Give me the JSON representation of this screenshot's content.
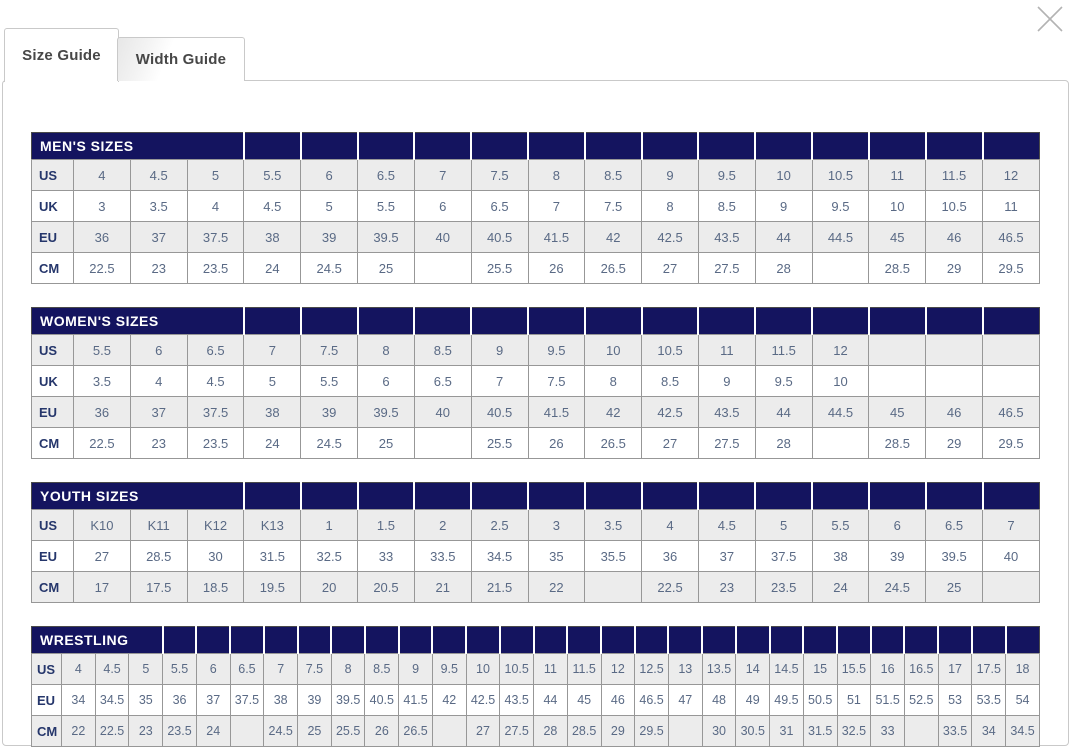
{
  "colors": {
    "header_navy": "#14145f",
    "row_alt_bg": "#ececec",
    "row_bg": "#ffffff",
    "value_text": "#5a6a85",
    "label_text": "#25366b",
    "header_text": "#ffffff",
    "grid_line": "#979797",
    "table_outer": "#4a4a4a",
    "tab_text": "#474747",
    "tab_border": "#c9c9c9",
    "close_color": "#b3b3b3"
  },
  "icons": {
    "close": "x-cross"
  },
  "tabs": [
    {
      "label": "Size Guide",
      "active": true
    },
    {
      "label": "Width Guide",
      "active": false
    }
  ],
  "tables": [
    {
      "title": "MEN'S SIZES",
      "rows": [
        {
          "label": "US",
          "values": [
            "4",
            "4.5",
            "5",
            "5.5",
            "6",
            "6.5",
            "7",
            "7.5",
            "8",
            "8.5",
            "9",
            "9.5",
            "10",
            "10.5",
            "11",
            "11.5",
            "12"
          ]
        },
        {
          "label": "UK",
          "values": [
            "3",
            "3.5",
            "4",
            "4.5",
            "5",
            "5.5",
            "6",
            "6.5",
            "7",
            "7.5",
            "8",
            "8.5",
            "9",
            "9.5",
            "10",
            "10.5",
            "11"
          ]
        },
        {
          "label": "EU",
          "values": [
            "36",
            "37",
            "37.5",
            "38",
            "39",
            "39.5",
            "40",
            "40.5",
            "41.5",
            "42",
            "42.5",
            "43.5",
            "44",
            "44.5",
            "45",
            "46",
            "46.5"
          ]
        },
        {
          "label": "CM",
          "values": [
            "22.5",
            "23",
            "23.5",
            "24",
            "24.5",
            "25",
            "",
            "25.5",
            "26",
            "26.5",
            "27",
            "27.5",
            "28",
            "",
            "28.5",
            "29",
            "29.5"
          ]
        }
      ]
    },
    {
      "title": "WOMEN'S SIZES",
      "rows": [
        {
          "label": "US",
          "values": [
            "5.5",
            "6",
            "6.5",
            "7",
            "7.5",
            "8",
            "8.5",
            "9",
            "9.5",
            "10",
            "10.5",
            "11",
            "11.5",
            "12",
            "",
            "",
            ""
          ]
        },
        {
          "label": "UK",
          "values": [
            "3.5",
            "4",
            "4.5",
            "5",
            "5.5",
            "6",
            "6.5",
            "7",
            "7.5",
            "8",
            "8.5",
            "9",
            "9.5",
            "10",
            "",
            "",
            ""
          ]
        },
        {
          "label": "EU",
          "values": [
            "36",
            "37",
            "37.5",
            "38",
            "39",
            "39.5",
            "40",
            "40.5",
            "41.5",
            "42",
            "42.5",
            "43.5",
            "44",
            "44.5",
            "45",
            "46",
            "46.5"
          ]
        },
        {
          "label": "CM",
          "values": [
            "22.5",
            "23",
            "23.5",
            "24",
            "24.5",
            "25",
            "",
            "25.5",
            "26",
            "26.5",
            "27",
            "27.5",
            "28",
            "",
            "28.5",
            "29",
            "29.5"
          ]
        }
      ]
    },
    {
      "title": "YOUTH SIZES",
      "rows": [
        {
          "label": "US",
          "values": [
            "K10",
            "K11",
            "K12",
            "K13",
            "1",
            "1.5",
            "2",
            "2.5",
            "3",
            "3.5",
            "4",
            "4.5",
            "5",
            "5.5",
            "6",
            "6.5",
            "7"
          ]
        },
        {
          "label": "EU",
          "values": [
            "27",
            "28.5",
            "30",
            "31.5",
            "32.5",
            "33",
            "33.5",
            "34.5",
            "35",
            "35.5",
            "36",
            "37",
            "37.5",
            "38",
            "39",
            "39.5",
            "40"
          ]
        },
        {
          "label": "CM",
          "values": [
            "17",
            "17.5",
            "18.5",
            "19.5",
            "20",
            "20.5",
            "21",
            "21.5",
            "22",
            "",
            "22.5",
            "23",
            "23.5",
            "24",
            "24.5",
            "25",
            ""
          ]
        }
      ]
    },
    {
      "title": "WRESTLING",
      "rows": [
        {
          "label": "US",
          "values": [
            "4",
            "4.5",
            "5",
            "5.5",
            "6",
            "6.5",
            "7",
            "7.5",
            "8",
            "8.5",
            "9",
            "9.5",
            "10",
            "10.5",
            "11",
            "11.5",
            "12",
            "12.5",
            "13",
            "13.5",
            "14",
            "14.5",
            "15",
            "15.5",
            "16",
            "16.5",
            "17",
            "17.5",
            "18"
          ]
        },
        {
          "label": "EU",
          "values": [
            "34",
            "34.5",
            "35",
            "36",
            "37",
            "37.5",
            "38",
            "39",
            "39.5",
            "40.5",
            "41.5",
            "42",
            "42.5",
            "43.5",
            "44",
            "45",
            "46",
            "46.5",
            "47",
            "48",
            "49",
            "49.5",
            "50.5",
            "51",
            "51.5",
            "52.5",
            "53",
            "53.5",
            "54"
          ]
        },
        {
          "label": "CM",
          "values": [
            "22",
            "22.5",
            "23",
            "23.5",
            "24",
            "",
            "24.5",
            "25",
            "25.5",
            "26",
            "26.5",
            "",
            "27",
            "27.5",
            "28",
            "28.5",
            "29",
            "29.5",
            "",
            "30",
            "30.5",
            "31",
            "31.5",
            "32.5",
            "33",
            "",
            "33.5",
            "34",
            "34.5"
          ]
        }
      ]
    }
  ]
}
